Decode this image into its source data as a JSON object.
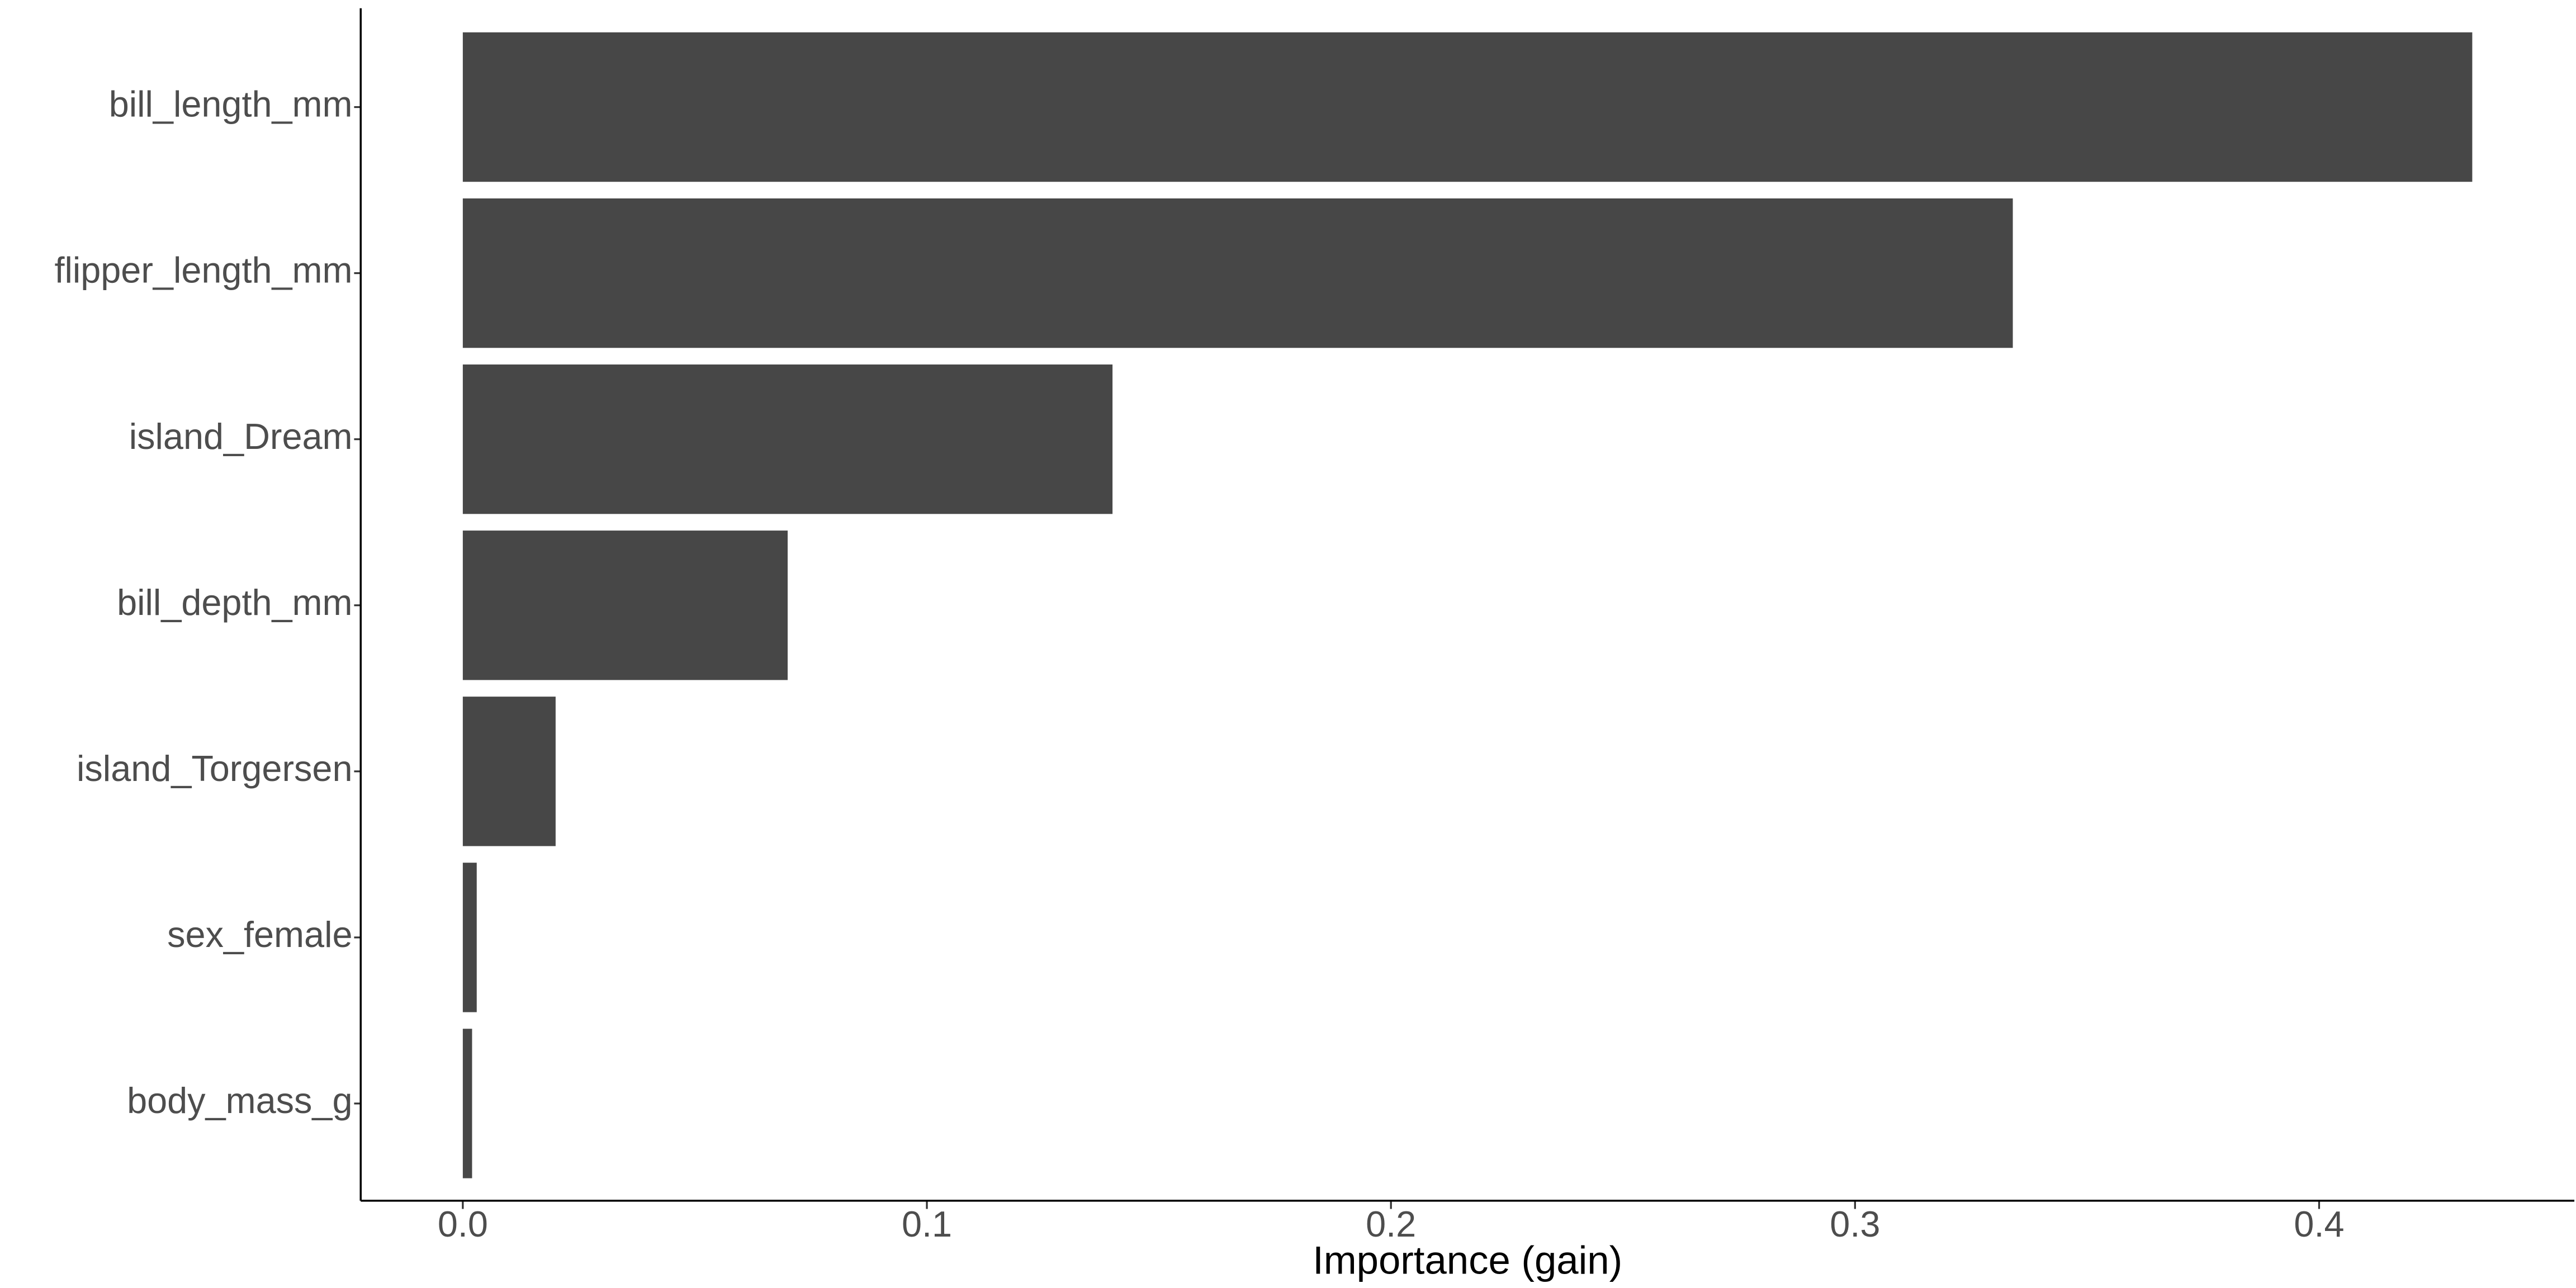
{
  "chart_data": {
    "type": "barh",
    "x_label": "Importance (gain)",
    "categories": [
      "bill_length_mm",
      "flipper_length_mm",
      "island_Dream",
      "bill_depth_mm",
      "island_Torgersen",
      "sex_female",
      "body_mass_g"
    ],
    "values": [
      0.433,
      0.334,
      0.14,
      0.07,
      0.02,
      0.003,
      0.002
    ],
    "color": "#474747",
    "xlim": [
      -0.022,
      0.455
    ],
    "xticks": [
      {
        "value": 0,
        "label": "0.0"
      },
      0.1,
      0.2,
      0.3,
      0.4
    ],
    "grid": false
  }
}
